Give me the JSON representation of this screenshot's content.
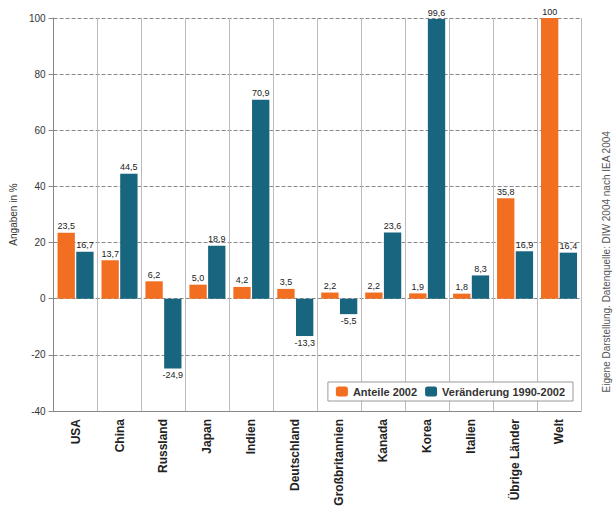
{
  "chart_data": {
    "type": "bar",
    "y_label": "Angaben in %",
    "annotations": [
      "Eigene Darstellung. Datenquelle: DIW 2004 nach IEA 2004"
    ],
    "categories": [
      "USA",
      "China",
      "Russland",
      "Japan",
      "Indien",
      "Deutschland",
      "Großbritannien",
      "Kanada",
      "Korea",
      "Italien",
      "Übrige Länder",
      "Welt"
    ],
    "series": [
      {
        "name": "Anteile 2002",
        "color": "#f26f21",
        "values": [
          23.5,
          13.7,
          6.2,
          5.0,
          4.2,
          3.5,
          2.2,
          2.2,
          1.9,
          1.8,
          35.8,
          100
        ],
        "value_labels": [
          "23,5",
          "13,7",
          "6,2",
          "5,0",
          "4,2",
          "3,5",
          "2,2",
          "2,2",
          "1,9",
          "1,8",
          "35,8",
          "100"
        ]
      },
      {
        "name": "Veränderung 1990-2002",
        "color": "#17657e",
        "values": [
          16.7,
          44.5,
          -24.9,
          18.9,
          70.9,
          -13.3,
          -5.5,
          23.6,
          99.6,
          8.3,
          16.9,
          16.4
        ],
        "value_labels": [
          "16,7",
          "44,5",
          "-24,9",
          "18,9",
          "70,9",
          "-13,3",
          "-5,5",
          "23,6",
          "99,6",
          "8,3",
          "16,9",
          "16,4"
        ]
      }
    ],
    "ylim": [
      -40,
      100
    ],
    "yticks": [
      -40,
      -20,
      0,
      20,
      40,
      60,
      80,
      100
    ],
    "grid": true,
    "legend": "lower right",
    "data_labels": true
  }
}
